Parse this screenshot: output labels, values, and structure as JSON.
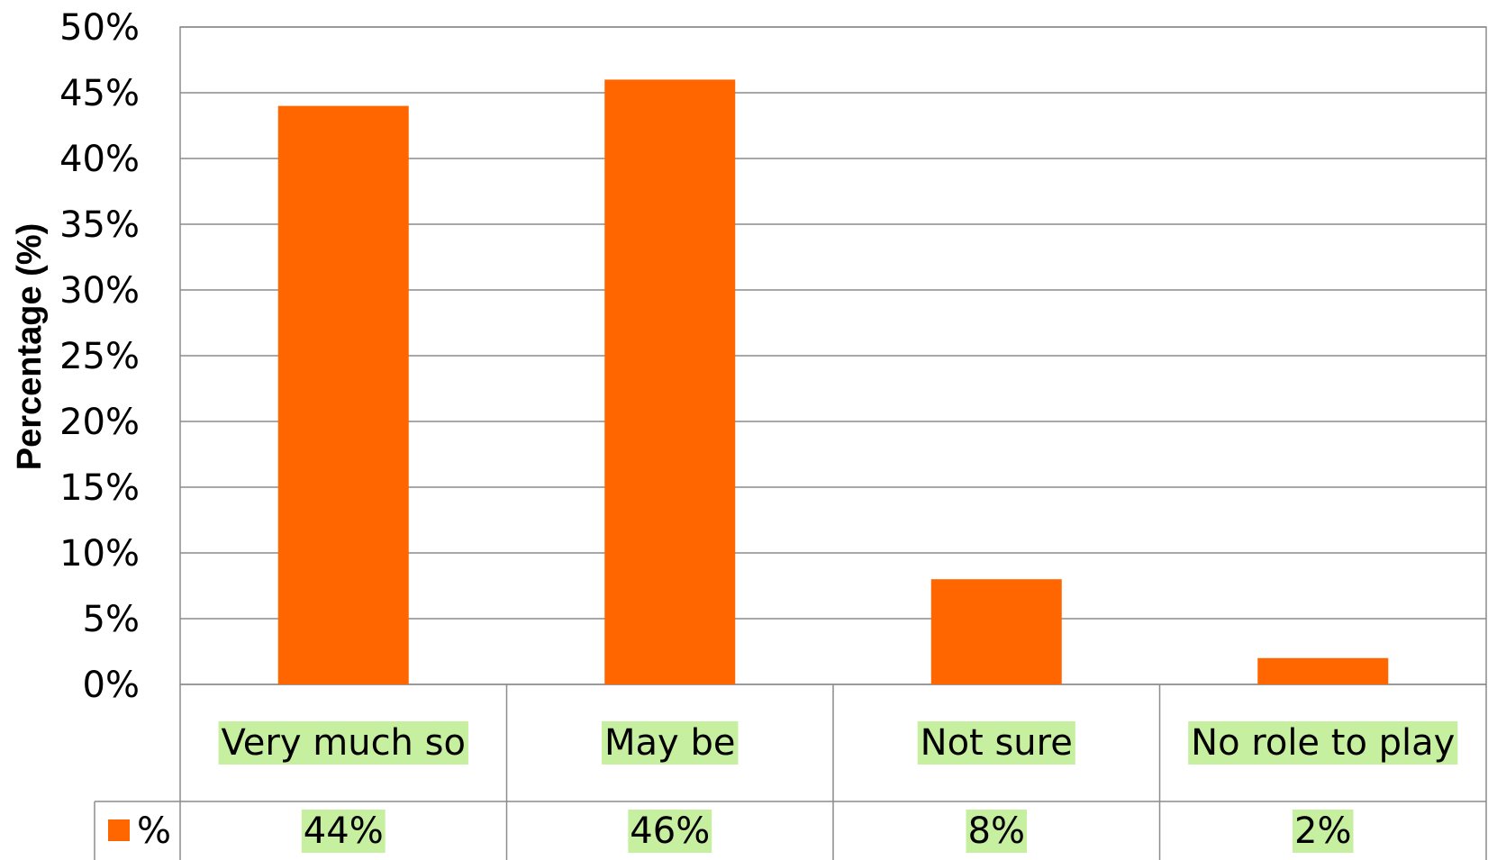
{
  "chart_data": {
    "type": "bar",
    "categories": [
      "Very much so",
      "May be",
      "Not sure",
      "No role to play"
    ],
    "category_lines": [
      [
        "Very much so"
      ],
      [
        "May be"
      ],
      [
        "Not sure"
      ],
      [
        "No role to play"
      ]
    ],
    "series": [
      {
        "name": "%",
        "values": [
          44,
          46,
          8,
          2
        ],
        "color": "#ff6600"
      }
    ],
    "data_labels": [
      "44%",
      "46%",
      "8%",
      "2%"
    ],
    "ylabel": "Percentage (%)",
    "ylim": [
      0,
      50
    ],
    "yticks": [
      0,
      5,
      10,
      15,
      20,
      25,
      30,
      35,
      40,
      45,
      50
    ],
    "ytick_labels": [
      "0%",
      "5%",
      "10%",
      "15%",
      "20%",
      "25%",
      "30%",
      "35%",
      "40%",
      "45%",
      "50%"
    ],
    "grid": true,
    "legend": "data-table",
    "colors": {
      "bar": "#ff6600",
      "label_highlight": "#c6efa0",
      "gridline": "#8c8c8c"
    }
  }
}
